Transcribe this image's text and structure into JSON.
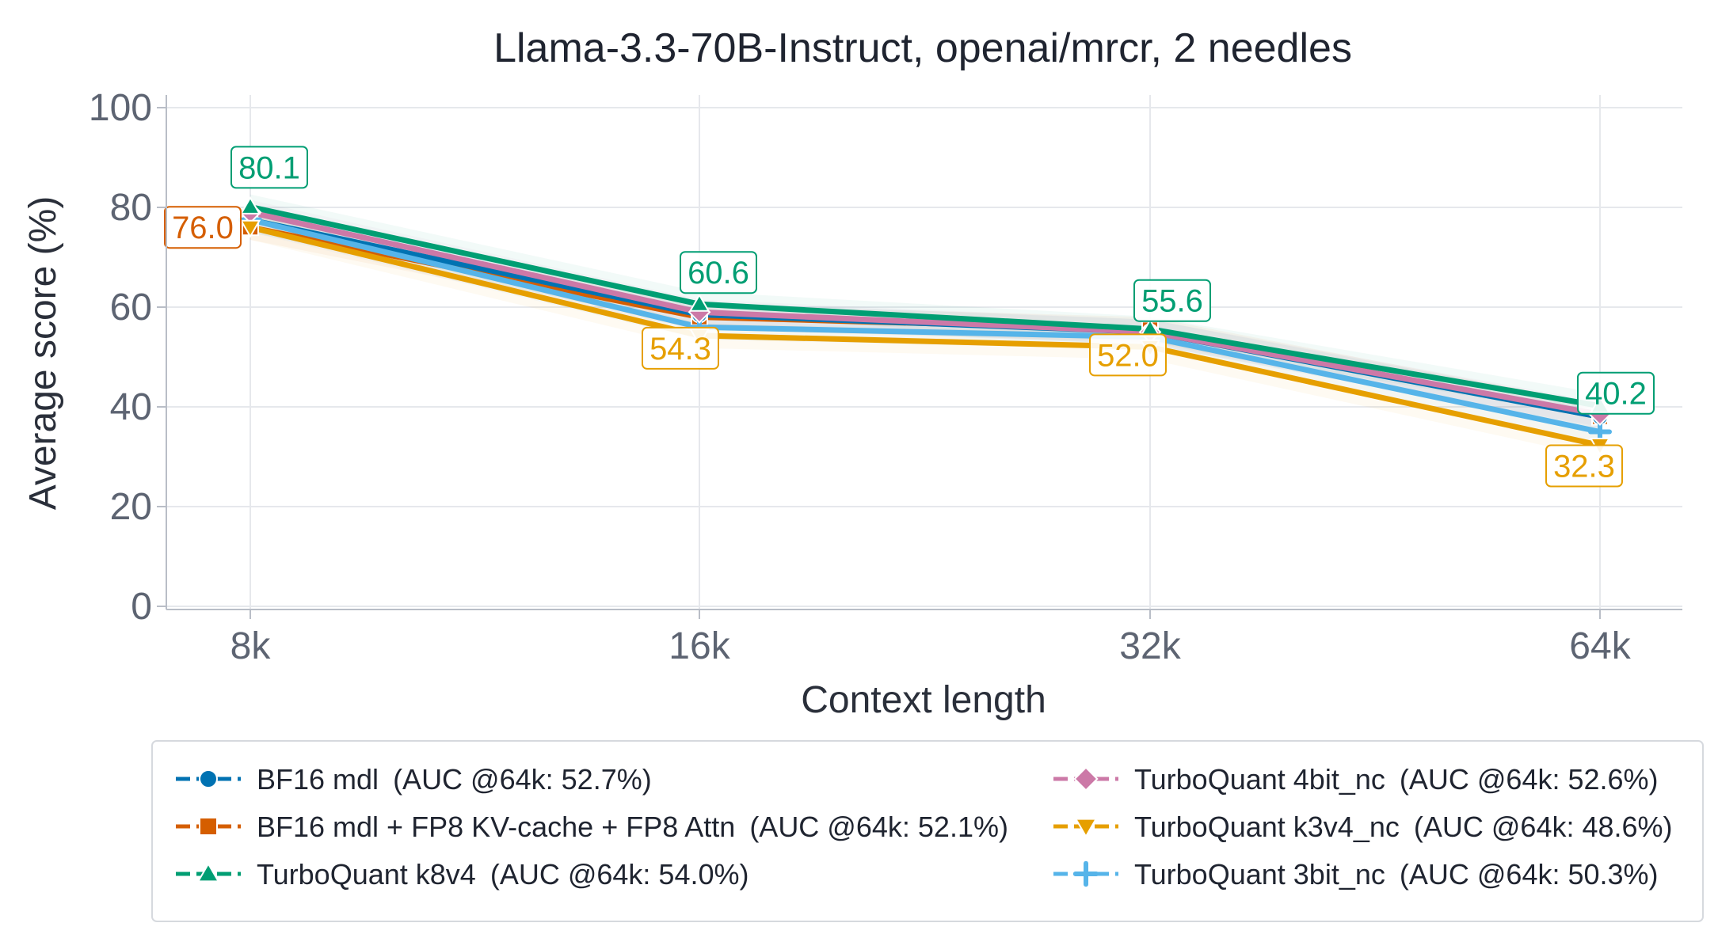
{
  "chart_data": {
    "type": "line",
    "title": "Llama-3.3-70B-Instruct, openai/mrcr, 2 needles",
    "xlabel": "Context length",
    "ylabel": "Average score (%)",
    "categories": [
      "8k",
      "16k",
      "32k",
      "64k"
    ],
    "ylim": [
      0,
      100
    ],
    "yticks": [
      0,
      20,
      40,
      60,
      80,
      100
    ],
    "grid": true,
    "legend_position": "bottom",
    "series": [
      {
        "name": "BF16 mdl",
        "auc": "(AUC @64k: 52.7%)",
        "color": "#0072b2",
        "marker": "circle",
        "values": [
          77.5,
          58.5,
          55.0,
          38.0
        ]
      },
      {
        "name": "BF16 mdl + FP8 KV-cache + FP8 Attn",
        "auc": "(AUC @64k: 52.1%)",
        "color": "#d55e00",
        "marker": "square",
        "values": [
          76.0,
          58.0,
          55.5,
          38.0
        ]
      },
      {
        "name": "TurboQuant k8v4",
        "auc": "(AUC @64k: 54.0%)",
        "color": "#009e73",
        "marker": "triangle-up",
        "values": [
          80.1,
          60.6,
          55.6,
          40.2
        ]
      },
      {
        "name": "TurboQuant 4bit_nc",
        "auc": "(AUC @64k: 52.6%)",
        "color": "#cc79a7",
        "marker": "diamond",
        "values": [
          79.0,
          59.0,
          55.0,
          38.5
        ]
      },
      {
        "name": "TurboQuant k3v4_nc",
        "auc": "(AUC @64k: 48.6%)",
        "color": "#e69f00",
        "marker": "triangle-down",
        "values": [
          76.0,
          54.3,
          52.0,
          32.3
        ]
      },
      {
        "name": "TurboQuant 3bit_nc",
        "auc": "(AUC @64k: 50.3%)",
        "color": "#56b4e9",
        "marker": "plus",
        "values": [
          77.5,
          56.0,
          54.0,
          35.0
        ]
      }
    ],
    "annotations": [
      {
        "text": "80.1",
        "category": "8k",
        "value": 80.1,
        "series": "TurboQuant k8v4"
      },
      {
        "text": "76.0",
        "category": "8k",
        "value": 76.0,
        "series": "BF16 mdl + FP8 KV-cache + FP8 Attn"
      },
      {
        "text": "60.6",
        "category": "16k",
        "value": 60.6,
        "series": "TurboQuant k8v4"
      },
      {
        "text": "54.3",
        "category": "16k",
        "value": 54.3,
        "series": "TurboQuant k3v4_nc"
      },
      {
        "text": "55.6",
        "category": "32k",
        "value": 55.6,
        "series": "TurboQuant k8v4"
      },
      {
        "text": "52.0",
        "category": "32k",
        "value": 52.0,
        "series": "TurboQuant k3v4_nc"
      },
      {
        "text": "40.2",
        "category": "64k",
        "value": 40.2,
        "series": "TurboQuant k8v4"
      },
      {
        "text": "32.3",
        "category": "64k",
        "value": 32.3,
        "series": "TurboQuant k3v4_nc"
      }
    ]
  }
}
